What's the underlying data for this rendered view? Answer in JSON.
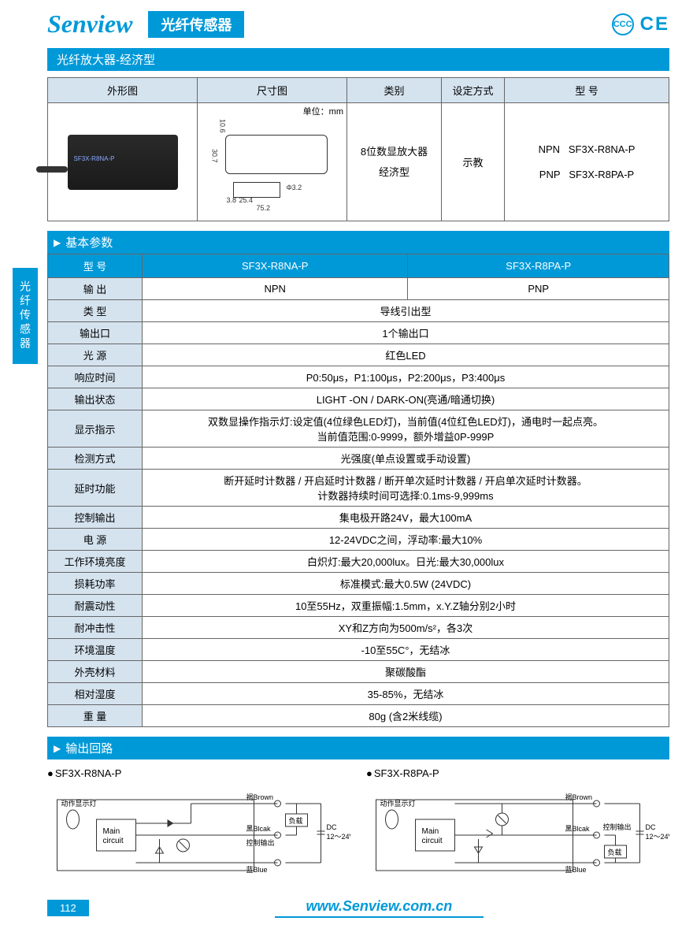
{
  "colors": {
    "brand": "#0099d8",
    "header_bg": "#d5e3ef",
    "border": "#666666",
    "text": "#333333"
  },
  "header": {
    "logo": "Senview",
    "title": "光纤传感器",
    "cert1": "CCC",
    "cert2": "CE"
  },
  "subtitle": "光纤放大器-经济型",
  "side_tab": "光纤传感器",
  "top_table": {
    "headers": [
      "外形图",
      "尺寸图",
      "类别",
      "设定方式",
      "型 号"
    ],
    "unit": "单位：mm",
    "dims": {
      "w": "75.2",
      "d1": "25.4",
      "d2": "3.8",
      "h": "30.7",
      "h2": "10.6",
      "hole": "Φ3.2"
    },
    "category": "8位数显放大器\n经济型",
    "setting": "示教",
    "models": [
      {
        "type": "NPN",
        "model": "SF3X-R8NA-P"
      },
      {
        "type": "PNP",
        "model": "SF3X-R8PA-P"
      }
    ],
    "photo_label": "SF3X-R8NA-P"
  },
  "spec_section": "基本参数",
  "spec_header": {
    "label": "型 号",
    "col1": "SF3X-R8NA-P",
    "col2": "SF3X-R8PA-P"
  },
  "spec_rows": [
    {
      "label": "输 出",
      "v1": "NPN",
      "v2": "PNP"
    },
    {
      "label": "类 型",
      "v": "导线引出型"
    },
    {
      "label": "输出口",
      "v": "1个输出口"
    },
    {
      "label": "光 源",
      "v": "红色LED"
    },
    {
      "label": "响应时间",
      "v": "P0:50μs，P1:100μs，P2:200μs，P3:400μs"
    },
    {
      "label": "输出状态",
      "v": "LIGHT -ON / DARK-ON(亮通/暗通切换)"
    },
    {
      "label": "显示指示",
      "v": "双数显操作指示灯:设定值(4位绿色LED灯)，当前值(4位红色LED灯)，通电时一起点亮。\n当前值范围:0-9999，额外增益0P-999P"
    },
    {
      "label": "检测方式",
      "v": "光强度(单点设置或手动设置)"
    },
    {
      "label": "延时功能",
      "v": "断开延时计数器 / 开启延时计数器 / 断开单次延时计数器 / 开启单次延时计数器。\n计数器持续时间可选择:0.1ms-9,999ms"
    },
    {
      "label": "控制输出",
      "v": "集电极开路24V，最大100mA"
    },
    {
      "label": "电 源",
      "v": "12-24VDC之间，浮动率:最大10%"
    },
    {
      "label": "工作环境亮度",
      "v": "白炽灯:最大20,000lux。日光:最大30,000lux"
    },
    {
      "label": "损耗功率",
      "v": "标准模式:最大0.5W (24VDC)"
    },
    {
      "label": "耐震动性",
      "v": "10至55Hz，双重振幅:1.5mm，x.Y.Z轴分别2小时"
    },
    {
      "label": "耐冲击性",
      "v": "XY和Z方向为500m/s²，各3次"
    },
    {
      "label": "环境温度",
      "v": "-10至55C°，无结冰"
    },
    {
      "label": "外壳材料",
      "v": "聚碳酸酯"
    },
    {
      "label": "相对湿度",
      "v": "35-85%，无结冰"
    },
    {
      "label": "重 量",
      "v": "80g (含2米线缆)"
    }
  ],
  "circuit_section": "输出回路",
  "circuits": [
    {
      "title": "SF3X-R8NA-P",
      "type": "NPN"
    },
    {
      "title": "SF3X-R8PA-P",
      "type": "PNP"
    }
  ],
  "circuit_labels": {
    "indicator": "动作显示灯",
    "main": "Main\ncircuit",
    "brown": "褐Brown",
    "black": "黑Blcak",
    "blue": "蓝Blue",
    "load": "负载",
    "ctrl": "控制输出",
    "dc": "DC\n12～24V"
  },
  "footer": {
    "page": "112",
    "url": "www.Senview.com.cn"
  }
}
